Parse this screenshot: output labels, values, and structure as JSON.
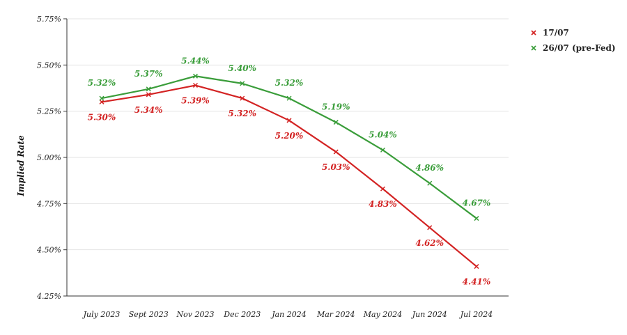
{
  "chart_data": {
    "type": "line",
    "title": "",
    "xlabel": "",
    "ylabel": "Implied Rate",
    "categories": [
      "July 2023",
      "Sept 2023",
      "Nov 2023",
      "Dec 2023",
      "Jan 2024",
      "Mar 2024",
      "May 2024",
      "Jun 2024",
      "Jul 2024"
    ],
    "ylim": [
      4.25,
      5.75
    ],
    "yticks": [
      "4.25%",
      "4.50%",
      "4.75%",
      "5.00%",
      "5.25%",
      "5.50%",
      "5.75%"
    ],
    "grid": "horizontal",
    "legend": "top-right",
    "series": [
      {
        "name": "17/07",
        "color": "#d32323",
        "values": [
          5.3,
          5.34,
          5.39,
          5.32,
          5.2,
          5.03,
          4.83,
          4.62,
          4.41
        ],
        "labels": [
          "5.30%",
          "5.34%",
          "5.39%",
          "5.32%",
          "5.20%",
          "5.03%",
          "4.83%",
          "4.62%",
          "4.41%"
        ]
      },
      {
        "name": "26/07 (pre-Fed)",
        "color": "#3a9d3a",
        "values": [
          5.32,
          5.37,
          5.44,
          5.4,
          5.32,
          5.19,
          5.04,
          4.86,
          4.67
        ],
        "labels": [
          "5.32%",
          "5.37%",
          "5.44%",
          "5.40%",
          "5.32%",
          "5.19%",
          "5.04%",
          "4.86%",
          "4.67%"
        ]
      }
    ]
  }
}
